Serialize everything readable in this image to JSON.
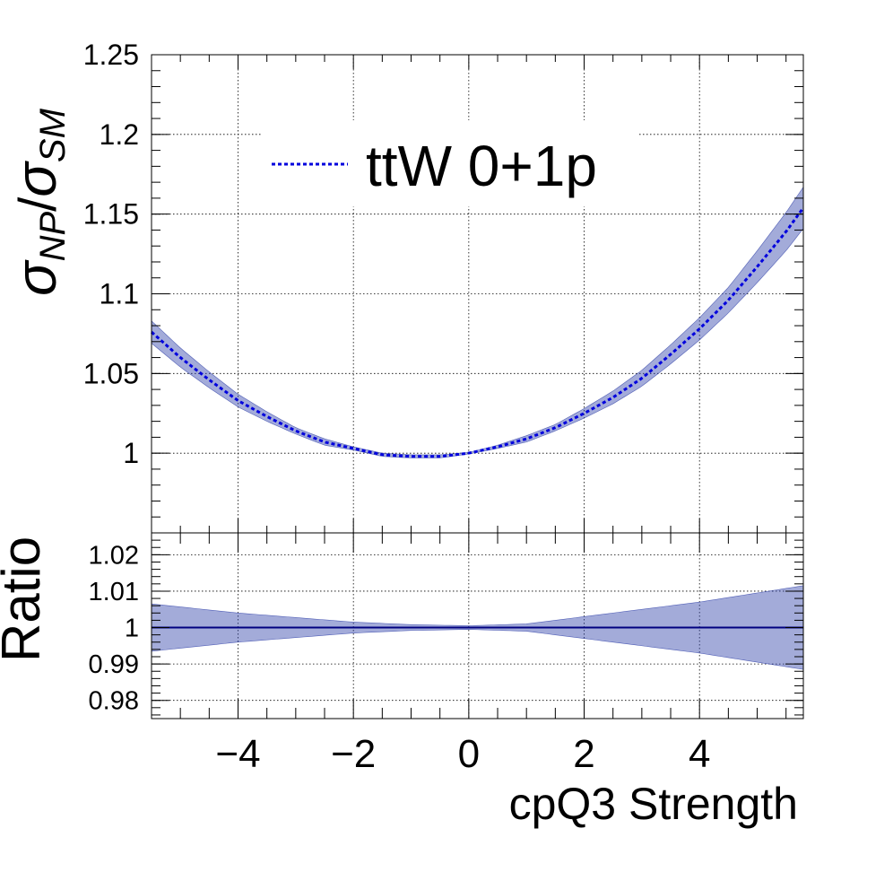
{
  "chart_data": [
    {
      "type": "line",
      "panel": "main",
      "ylabel_main": "σ",
      "ylabel_sub1": "NP",
      "ylabel_slash": "/",
      "ylabel_sub2": "SM",
      "xlim": [
        -5.5,
        5.8
      ],
      "ylim": [
        0.95,
        1.25
      ],
      "yticks": [
        1,
        1.05,
        1.1,
        1.15,
        1.2,
        1.25
      ],
      "ytick_labels": [
        "1",
        "1.05",
        "1.1",
        "1.15",
        "1.2",
        "1.25"
      ],
      "grid": true,
      "legend": {
        "position": "top-center",
        "entries": [
          "ttW 0+1p"
        ]
      },
      "series": [
        {
          "name": "ttW 0+1p",
          "style": "dotted",
          "color": "#0000dd",
          "band_color": "#3344aa",
          "x": [
            -5.5,
            -5.0,
            -4.5,
            -4.0,
            -3.5,
            -3.0,
            -2.5,
            -2.0,
            -1.5,
            -1.0,
            -0.5,
            0.0,
            0.5,
            1.0,
            1.5,
            2.0,
            2.5,
            3.0,
            3.5,
            4.0,
            4.5,
            5.0,
            5.5,
            5.8
          ],
          "y": [
            1.076,
            1.06,
            1.046,
            1.033,
            1.023,
            1.014,
            1.007,
            1.003,
            0.999,
            0.998,
            0.998,
            1.0,
            1.004,
            1.009,
            1.016,
            1.025,
            1.035,
            1.047,
            1.062,
            1.078,
            1.096,
            1.117,
            1.139,
            1.154
          ],
          "band_halfwidth": [
            0.007,
            0.006,
            0.005,
            0.004,
            0.003,
            0.002,
            0.002,
            0.001,
            0.001,
            0.001,
            0.001,
            0.0005,
            0.001,
            0.002,
            0.002,
            0.003,
            0.004,
            0.005,
            0.006,
            0.007,
            0.008,
            0.01,
            0.012,
            0.013
          ]
        }
      ]
    },
    {
      "type": "line",
      "panel": "ratio",
      "ylabel": "Ratio",
      "xlabel": "cpQ3 Strength",
      "xlim": [
        -5.5,
        5.8
      ],
      "ylim": [
        0.975,
        1.026
      ],
      "yticks": [
        0.98,
        0.99,
        1,
        1.01,
        1.02
      ],
      "ytick_labels": [
        "0.98",
        "0.99",
        "1",
        "1.01",
        "1.02"
      ],
      "xticks": [
        -4,
        -2,
        0,
        2,
        4
      ],
      "xtick_labels": [
        "−4",
        "−2",
        "0",
        "2",
        "4"
      ],
      "grid": true,
      "series": [
        {
          "name": "",
          "color": "#000080",
          "band_color": "#3344aa",
          "x": [
            -5.5,
            -4.0,
            -2.0,
            -1.0,
            0.0,
            1.0,
            2.0,
            3.0,
            4.0,
            5.0,
            5.8
          ],
          "y": [
            1,
            1,
            1,
            1,
            1,
            1,
            1,
            1,
            1,
            1,
            1
          ],
          "band_halfwidth": [
            0.0065,
            0.004,
            0.0015,
            0.0008,
            0.0005,
            0.001,
            0.003,
            0.005,
            0.007,
            0.0095,
            0.0115
          ]
        }
      ]
    }
  ]
}
